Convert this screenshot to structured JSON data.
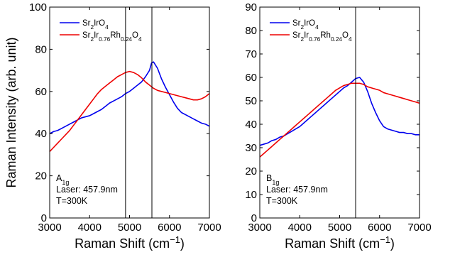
{
  "chart_data": [
    {
      "type": "line",
      "panel_label": "A1g",
      "annotations": [
        {
          "main": "A",
          "sub": "1g"
        },
        {
          "main": "Laser: 457.9nm"
        },
        {
          "main": "T=300K"
        }
      ],
      "xlabel": {
        "main": "Raman Shift (cm",
        "sup": "−1",
        "close": ")"
      },
      "ylabel": "Raman Intensity (arb. unit)",
      "xlim": [
        3000,
        7000
      ],
      "ylim": [
        0,
        100
      ],
      "xticks": [
        3000,
        4000,
        5000,
        6000,
        7000
      ],
      "yticks": [
        0,
        20,
        40,
        60,
        80,
        100
      ],
      "grid": false,
      "legend_position": "top-left",
      "vlines": [
        4900,
        5560
      ],
      "series": [
        {
          "name": "Sr2IrO4",
          "legend": [
            {
              "t": "Sr"
            },
            {
              "t": "2",
              "s": "sub"
            },
            {
              "t": "IrO"
            },
            {
              "t": "4",
              "s": "sub"
            }
          ],
          "color": "#0000ee",
          "x": [
            3000,
            3100,
            3200,
            3300,
            3400,
            3500,
            3600,
            3700,
            3800,
            3900,
            4000,
            4100,
            4200,
            4300,
            4400,
            4500,
            4600,
            4700,
            4800,
            4900,
            5000,
            5100,
            5200,
            5300,
            5400,
            5500,
            5550,
            5600,
            5700,
            5800,
            5900,
            6000,
            6100,
            6200,
            6300,
            6400,
            6500,
            6600,
            6700,
            6800,
            6900,
            7000
          ],
          "y": [
            40,
            41,
            41.5,
            42.5,
            43.5,
            44.5,
            45.5,
            46.5,
            47.5,
            48,
            48.5,
            49.5,
            50.5,
            51.5,
            53,
            54.5,
            55.5,
            56.5,
            57.5,
            59,
            60,
            61.5,
            63,
            64.5,
            67,
            70,
            73.5,
            74,
            71,
            66,
            62,
            58.5,
            55,
            52,
            50,
            49,
            48,
            47,
            46,
            45,
            44.5,
            43.5
          ]
        },
        {
          "name": "Sr2Ir0.76Rh0.24O4",
          "legend": [
            {
              "t": "Sr"
            },
            {
              "t": "2",
              "s": "sub"
            },
            {
              "t": "Ir"
            },
            {
              "t": "0.76",
              "s": "sub"
            },
            {
              "t": "Rh"
            },
            {
              "t": "0.24",
              "s": "sub"
            },
            {
              "t": "O"
            },
            {
              "t": "4",
              "s": "sub"
            }
          ],
          "color": "#ee0000",
          "x": [
            3000,
            3100,
            3200,
            3300,
            3400,
            3500,
            3600,
            3700,
            3800,
            3900,
            4000,
            4100,
            4200,
            4300,
            4400,
            4500,
            4600,
            4700,
            4800,
            4900,
            5000,
            5100,
            5200,
            5300,
            5400,
            5500,
            5600,
            5700,
            5800,
            5900,
            6000,
            6100,
            6200,
            6300,
            6400,
            6500,
            6600,
            6700,
            6800,
            6900,
            7000
          ],
          "y": [
            31.5,
            33.5,
            35.5,
            37.5,
            39.5,
            41.5,
            44,
            46.5,
            49,
            51.5,
            54,
            56.5,
            59,
            61,
            62.5,
            64,
            65.5,
            67,
            68,
            69,
            69.5,
            69,
            68,
            66.5,
            64.5,
            63,
            61.5,
            60.5,
            60,
            59.5,
            59,
            58.5,
            58,
            57.5,
            57,
            56.5,
            56,
            56,
            56.5,
            57.5,
            59
          ]
        }
      ]
    },
    {
      "type": "line",
      "panel_label": "B1g",
      "annotations": [
        {
          "main": "B",
          "sub": "1g"
        },
        {
          "main": "Laser: 457.9nm"
        },
        {
          "main": "T=300K"
        }
      ],
      "xlabel": {
        "main": "Raman Shift (cm",
        "sup": "−1",
        "close": ")"
      },
      "ylabel": "",
      "xlim": [
        3000,
        7000
      ],
      "ylim": [
        0,
        90
      ],
      "xticks": [
        3000,
        4000,
        5000,
        6000,
        7000
      ],
      "yticks": [
        0,
        10,
        20,
        30,
        40,
        50,
        60,
        70,
        80,
        90
      ],
      "grid": false,
      "legend_position": "top-left",
      "vlines": [
        5400
      ],
      "series": [
        {
          "name": "Sr2IrO4",
          "legend": [
            {
              "t": "Sr"
            },
            {
              "t": "2",
              "s": "sub"
            },
            {
              "t": "IrO"
            },
            {
              "t": "4",
              "s": "sub"
            }
          ],
          "color": "#0000ee",
          "x": [
            3000,
            3100,
            3200,
            3300,
            3400,
            3500,
            3600,
            3700,
            3800,
            3900,
            4000,
            4100,
            4200,
            4300,
            4400,
            4500,
            4600,
            4700,
            4800,
            4900,
            5000,
            5100,
            5200,
            5300,
            5400,
            5500,
            5600,
            5700,
            5800,
            5900,
            6000,
            6100,
            6200,
            6300,
            6400,
            6500,
            6600,
            6700,
            6800,
            6900,
            7000
          ],
          "y": [
            31,
            31.5,
            32,
            33,
            33.5,
            34.5,
            35,
            36,
            37,
            38,
            39,
            40.5,
            42,
            43.5,
            45,
            46.5,
            48,
            49.5,
            51,
            52.5,
            54,
            55.5,
            56.5,
            58,
            59.5,
            60,
            58,
            54,
            49,
            45,
            41.5,
            39,
            38,
            37.5,
            37,
            36.5,
            36.5,
            36,
            36,
            35.5,
            35.5
          ]
        },
        {
          "name": "Sr2Ir0.76Rh0.24O4",
          "legend": [
            {
              "t": "Sr"
            },
            {
              "t": "2",
              "s": "sub"
            },
            {
              "t": "Ir"
            },
            {
              "t": "0.76",
              "s": "sub"
            },
            {
              "t": "Rh"
            },
            {
              "t": "0.24",
              "s": "sub"
            },
            {
              "t": "O"
            },
            {
              "t": "4",
              "s": "sub"
            }
          ],
          "color": "#ee0000",
          "x": [
            3000,
            3100,
            3200,
            3300,
            3400,
            3500,
            3600,
            3700,
            3800,
            3900,
            4000,
            4100,
            4200,
            4300,
            4400,
            4500,
            4600,
            4700,
            4800,
            4900,
            5000,
            5100,
            5200,
            5300,
            5400,
            5500,
            5600,
            5700,
            5800,
            5900,
            6000,
            6100,
            6200,
            6300,
            6400,
            6500,
            6600,
            6700,
            6800,
            6900,
            7000
          ],
          "y": [
            26,
            27.5,
            29,
            30.5,
            32,
            33.5,
            35,
            36.5,
            38,
            39.5,
            41,
            42.5,
            44,
            45.5,
            47,
            48.5,
            50,
            51.5,
            53,
            54.5,
            55.5,
            56.5,
            57,
            57.5,
            57.5,
            57.5,
            57,
            56,
            55.5,
            55,
            54.5,
            53.5,
            53,
            52.5,
            52,
            51.5,
            51,
            50.5,
            50,
            49.5,
            49
          ]
        }
      ]
    }
  ]
}
